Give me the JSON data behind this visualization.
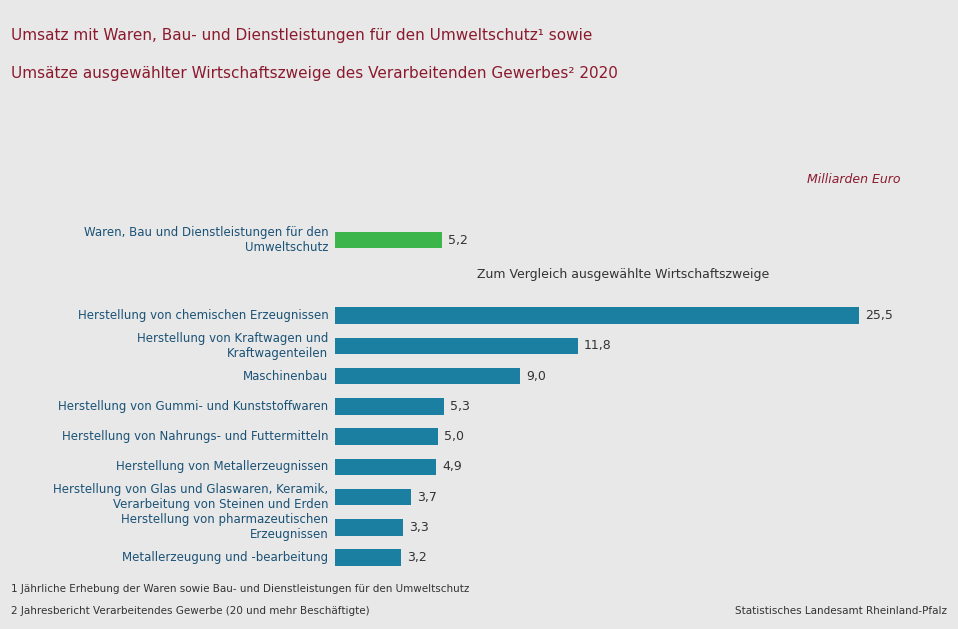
{
  "title_line1": "Umsatz mit Waren, Bau- und Dienstleistungen für den Umweltschutz¹ sowie",
  "title_line2": "Umsätze ausgewählter Wirtschaftszweige des Verarbeitenden Gewerbes² 2020",
  "unit_label": "Milliarden Euro",
  "comparison_label": "Zum Vergleich ausgewählte Wirtschaftszweige",
  "footer_line1": "1 Jährliche Erhebung der Waren sowie Bau- und Dienstleistungen für den Umweltschutz",
  "footer_line2": "2 Jahresbericht Verarbeitendes Gewerbe (20 und mehr Beschäftigte)",
  "footer_right": "Statistisches Landesamt Rheinland-Pfalz",
  "categories": [
    "Waren, Bau und Dienstleistungen für den\nUmweltschutz",
    "Herstellung von chemischen Erzeugnissen",
    "Herstellung von Kraftwagen und\nKraftwagenteilen",
    "Maschinenbau",
    "Herstellung von Gummi- und Kunststoffwaren",
    "Herstellung von Nahrungs- und Futtermitteln",
    "Herstellung von Metallerzeugnissen",
    "Herstellung von Glas und Glaswaren, Keramik,\nVerarbeitung von Steinen und Erden",
    "Herstellung von pharmazeutischen\nErzeugnissen",
    "Metallerzeugung und -bearbeitung"
  ],
  "values": [
    5.2,
    25.5,
    11.8,
    9.0,
    5.3,
    5.0,
    4.9,
    3.7,
    3.3,
    3.2
  ],
  "bar_colors": [
    "#3cb54a",
    "#1a7fa0",
    "#1a7fa0",
    "#1a7fa0",
    "#1a7fa0",
    "#1a7fa0",
    "#1a7fa0",
    "#1a7fa0",
    "#1a7fa0",
    "#1a7fa0"
  ],
  "value_labels": [
    "5,2",
    "25,5",
    "11,8",
    "9,0",
    "5,3",
    "5,0",
    "4,9",
    "3,7",
    "3,3",
    "3,2"
  ],
  "title_color": "#8b1a2e",
  "unit_label_color": "#8b1a2e",
  "comparison_label_color": "#333333",
  "label_color": "#1a5276",
  "background_color": "#e8e8e8",
  "top_bar_color": "#8b1a2e",
  "xlim": [
    0,
    28
  ]
}
